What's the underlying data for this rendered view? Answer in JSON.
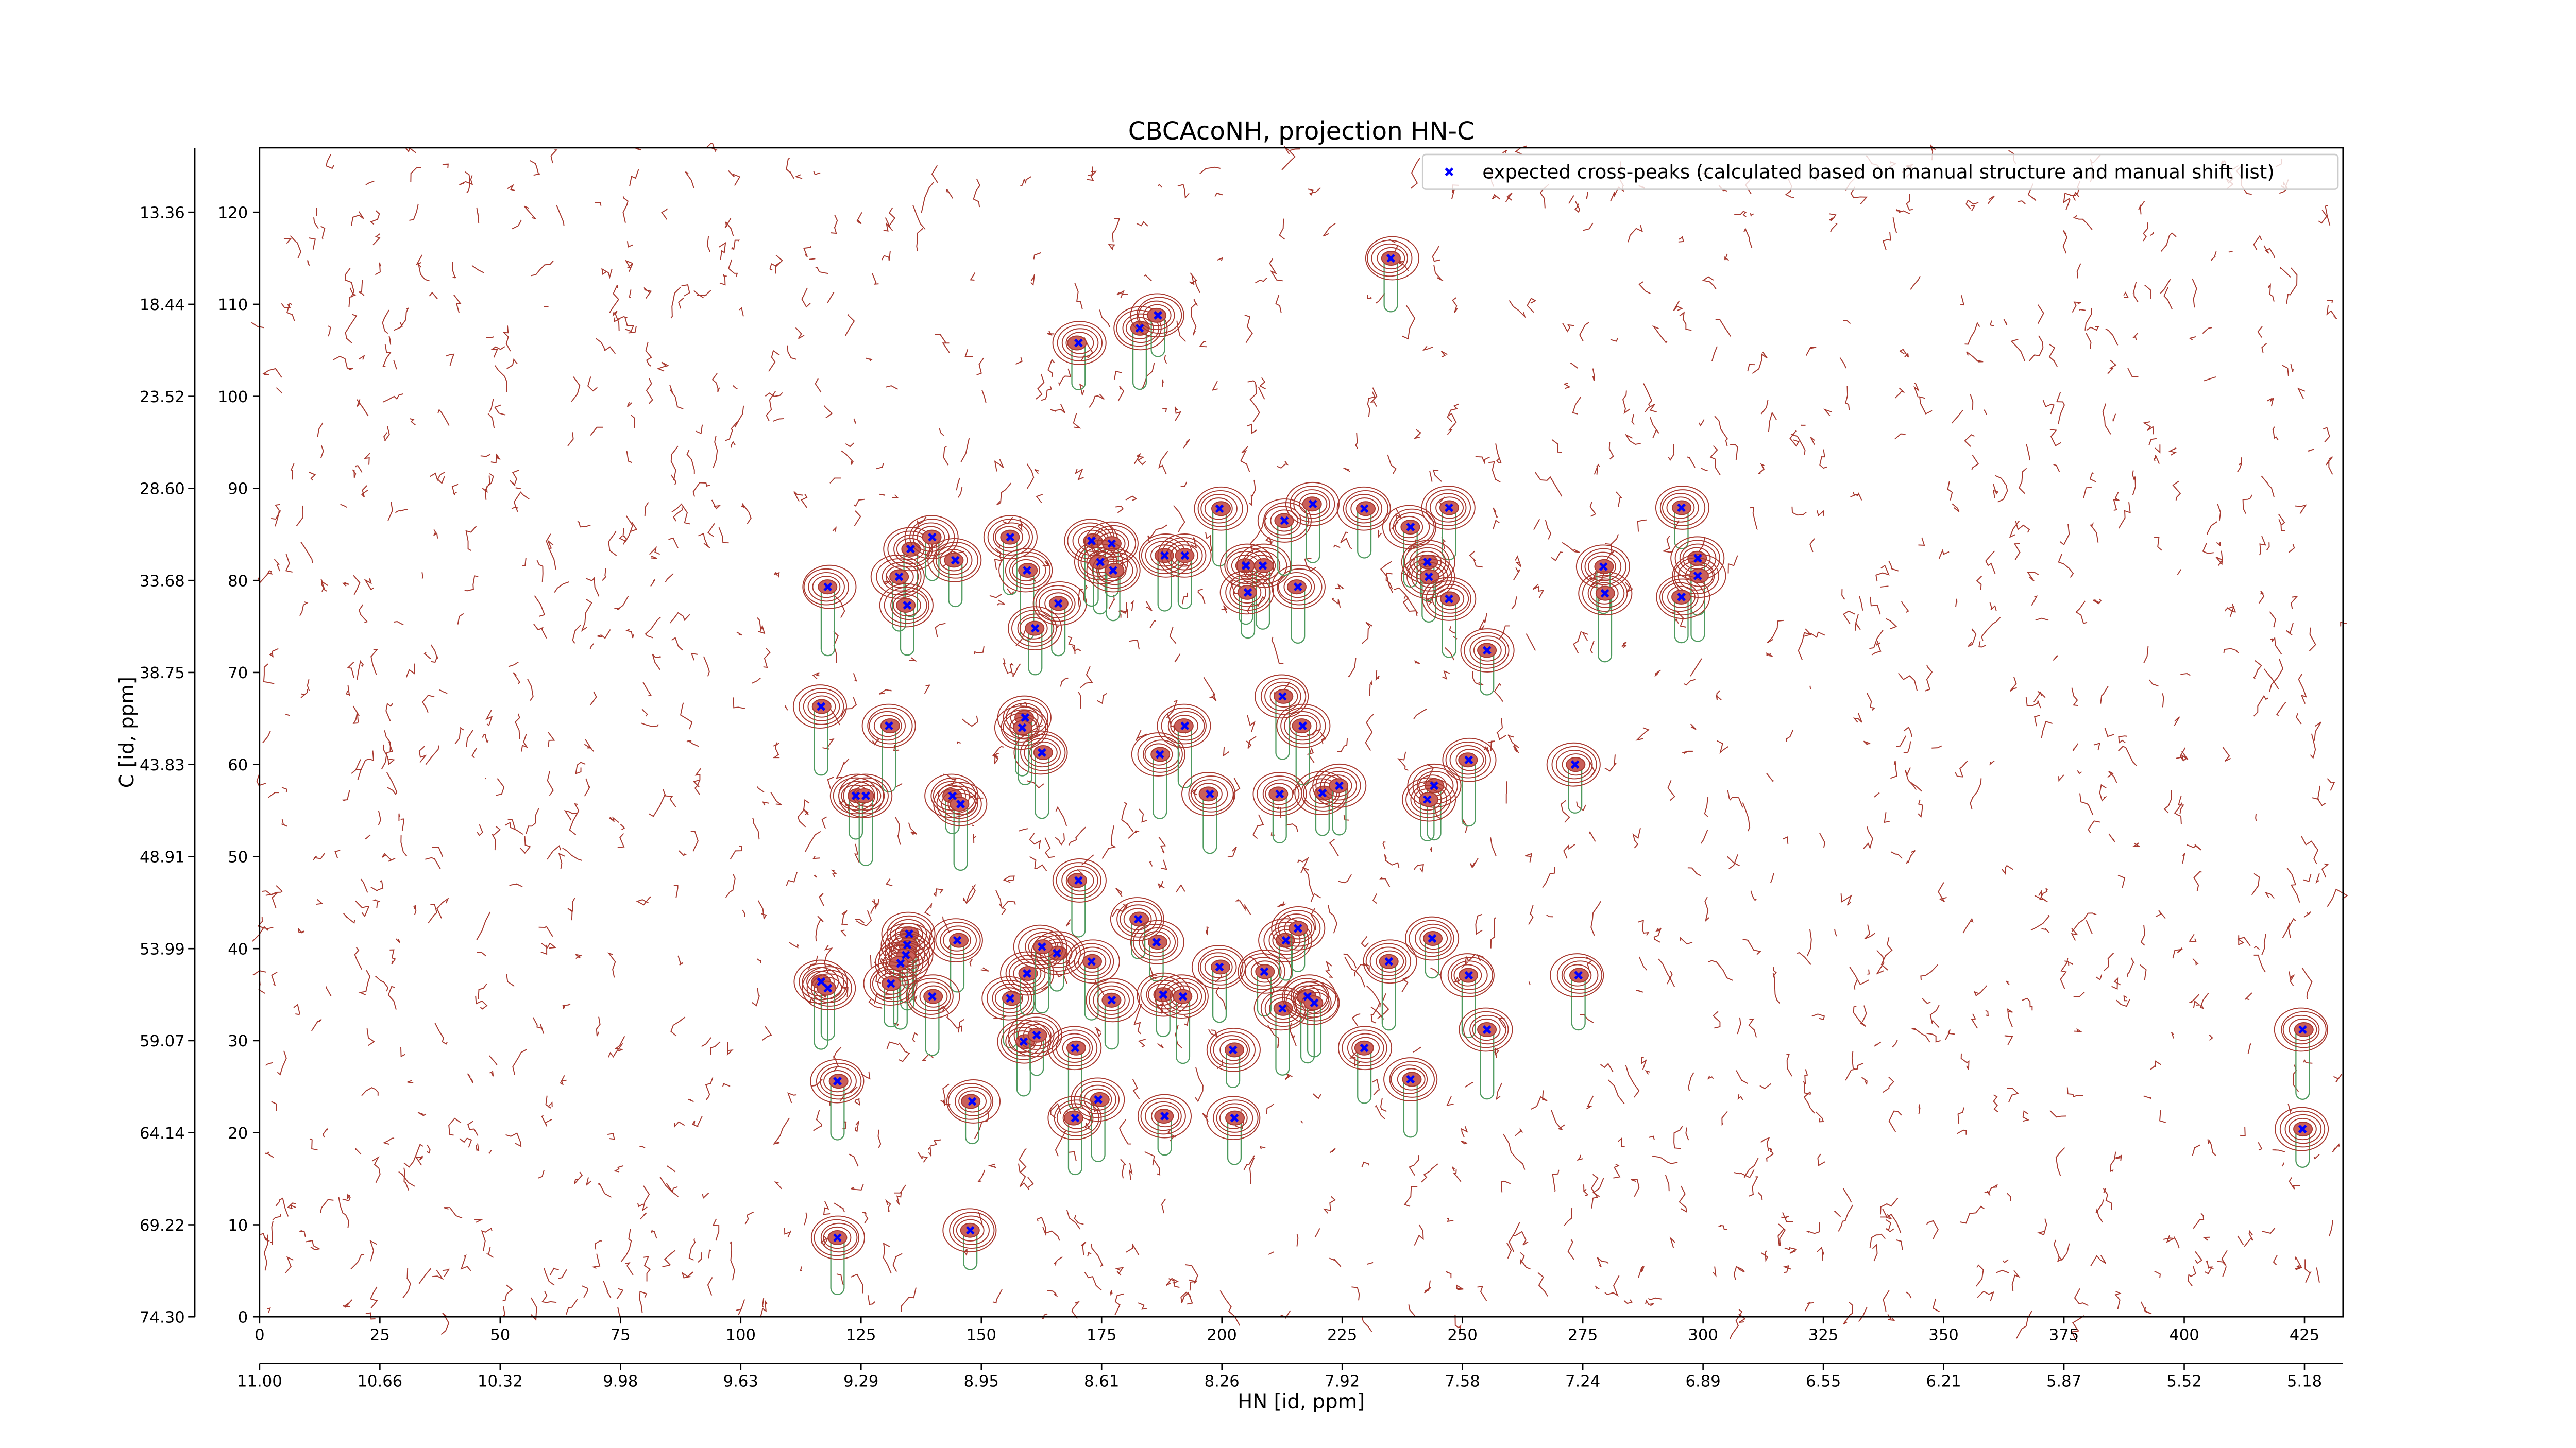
{
  "chart_data": {
    "type": "scatter",
    "title": "CBCAcoNH, projection HN-C",
    "xlabel": "HN [id, ppm]",
    "ylabel": "C [id, ppm]",
    "xlim": [
      0,
      433
    ],
    "ylim": [
      0,
      127
    ],
    "xticks": [
      0,
      25,
      50,
      75,
      100,
      125,
      150,
      175,
      200,
      225,
      250,
      275,
      300,
      325,
      350,
      375,
      400,
      425
    ],
    "yticks": [
      0,
      10,
      20,
      30,
      40,
      50,
      60,
      70,
      80,
      90,
      100,
      110,
      120
    ],
    "x2ticks": [
      {
        "value": 0,
        "label": "11.00"
      },
      {
        "value": 25,
        "label": "10.66"
      },
      {
        "value": 50,
        "label": "10.32"
      },
      {
        "value": 75,
        "label": "9.98"
      },
      {
        "value": 100,
        "label": "9.63"
      },
      {
        "value": 125,
        "label": "9.29"
      },
      {
        "value": 150,
        "label": "8.95"
      },
      {
        "value": 175,
        "label": "8.61"
      },
      {
        "value": 200,
        "label": "8.26"
      },
      {
        "value": 225,
        "label": "7.92"
      },
      {
        "value": 250,
        "label": "7.58"
      },
      {
        "value": 275,
        "label": "7.24"
      },
      {
        "value": 300,
        "label": "6.89"
      },
      {
        "value": 325,
        "label": "6.55"
      },
      {
        "value": 350,
        "label": "6.21"
      },
      {
        "value": 375,
        "label": "5.87"
      },
      {
        "value": 400,
        "label": "5.52"
      },
      {
        "value": 425,
        "label": "5.18"
      }
    ],
    "y2ticks": [
      {
        "value": 120,
        "label": "13.36"
      },
      {
        "value": 110,
        "label": "18.44"
      },
      {
        "value": 100,
        "label": "23.52"
      },
      {
        "value": 90,
        "label": "28.60"
      },
      {
        "value": 80,
        "label": "33.68"
      },
      {
        "value": 70,
        "label": "38.75"
      },
      {
        "value": 60,
        "label": "43.83"
      },
      {
        "value": 50,
        "label": "48.91"
      },
      {
        "value": 40,
        "label": "53.99"
      },
      {
        "value": 30,
        "label": "59.07"
      },
      {
        "value": 20,
        "label": "64.14"
      },
      {
        "value": 10,
        "label": "69.22"
      },
      {
        "value": 0,
        "label": "74.30"
      }
    ],
    "legend": "upper right",
    "series": [
      {
        "name": "expected cross-peaks (calculated based on manual structure and manual shift list)",
        "color": "#0000ff",
        "x": [
          170.2,
          182.9,
          186.7,
          235.1,
          156.0,
          135.3,
          139.8,
          144.6,
          132.9,
          134.6,
          118.1,
          159.5,
          166.0,
          161.2,
          172.9,
          177.1,
          174.7,
          177.4,
          188.1,
          192.3,
          199.5,
          205.0,
          208.5,
          205.4,
          215.8,
          213.0,
          218.9,
          229.6,
          239.2,
          247.2,
          242.7,
          243.0,
          247.2,
          255.1,
          295.5,
          298.9,
          298.9,
          295.5,
          279.3,
          279.6,
          116.7,
          130.8,
          123.9,
          126.0,
          144.0,
          145.7,
          159.1,
          162.6,
          158.5,
          187.1,
          192.3,
          197.5,
          212.6,
          216.8,
          212.0,
          220.9,
          224.4,
          244.1,
          242.7,
          251.3,
          273.4,
          170.2,
          182.6,
          186.4,
          135.0,
          134.6,
          134.3,
          133.2,
          131.2,
          116.7,
          118.1,
          145.0,
          139.8,
          156.0,
          159.5,
          165.7,
          162.6,
          172.9,
          177.1,
          187.8,
          191.9,
          199.5,
          208.8,
          213.3,
          215.8,
          212.6,
          217.8,
          219.2,
          234.7,
          243.7,
          251.3,
          274.1,
          158.8,
          161.5,
          169.5,
          202.3,
          229.6,
          239.2,
          255.1,
          120.1,
          148.1,
          174.3,
          169.5,
          188.1,
          202.6,
          120.1,
          147.7,
          424.6,
          424.6
        ],
        "values": [
          105.8,
          107.4,
          108.8,
          115.0,
          84.7,
          83.4,
          84.7,
          82.2,
          80.4,
          77.3,
          79.3,
          81.1,
          77.5,
          74.8,
          84.3,
          84.0,
          82.0,
          81.1,
          82.7,
          82.7,
          87.8,
          81.6,
          81.6,
          78.7,
          79.3,
          86.5,
          88.3,
          87.8,
          85.8,
          87.9,
          82.0,
          80.4,
          78.0,
          72.4,
          87.9,
          82.4,
          80.5,
          78.2,
          81.5,
          78.6,
          66.3,
          64.2,
          56.6,
          56.6,
          56.6,
          55.7,
          65.1,
          61.3,
          64.0,
          61.1,
          64.2,
          56.8,
          67.4,
          64.2,
          56.8,
          56.9,
          57.7,
          57.7,
          56.2,
          60.5,
          60.0,
          47.4,
          43.2,
          40.7,
          41.6,
          40.4,
          39.3,
          38.4,
          36.2,
          36.4,
          35.7,
          40.9,
          34.8,
          34.6,
          37.3,
          39.5,
          40.2,
          38.6,
          34.4,
          35.0,
          34.8,
          38.0,
          37.5,
          40.9,
          42.2,
          33.5,
          34.8,
          34.1,
          38.6,
          41.1,
          37.1,
          37.1,
          29.9,
          30.6,
          29.2,
          29.0,
          29.2,
          25.8,
          31.2,
          25.6,
          23.4,
          23.6,
          21.6,
          21.8,
          21.6,
          8.6,
          9.4,
          31.2,
          20.4
        ]
      }
    ]
  }
}
